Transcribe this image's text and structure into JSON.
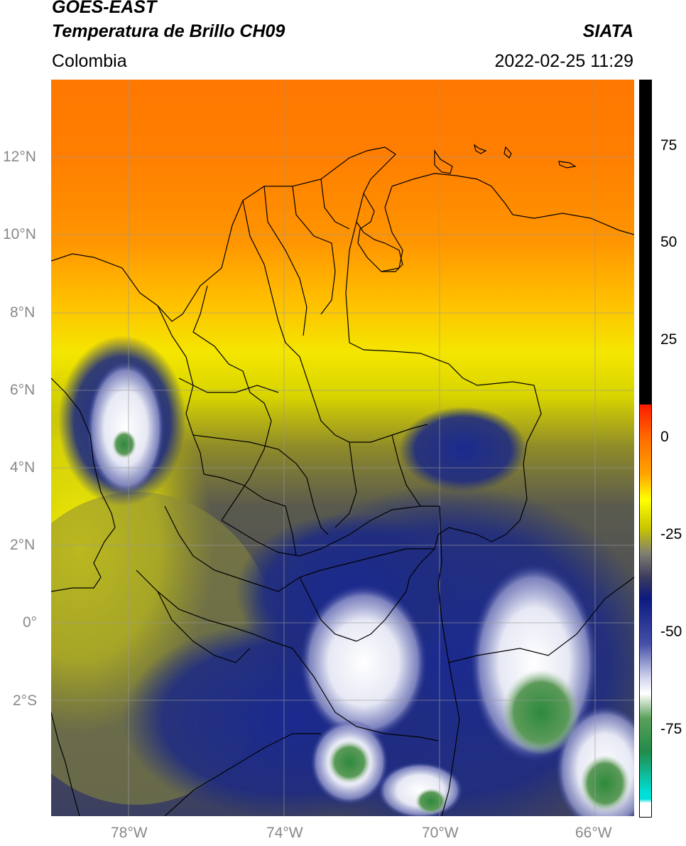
{
  "header": {
    "satellite": "GOES-EAST",
    "product": "Temperatura de Brillo CH09",
    "source": "SIATA",
    "region": "Colombia",
    "datetime": "2022-02-25 11:29"
  },
  "map": {
    "lon_range": [
      -80,
      -65
    ],
    "lat_range": [
      -5,
      14
    ],
    "lat_ticks": [
      "12°N",
      "10°N",
      "8°N",
      "6°N",
      "4°N",
      "2°N",
      "0°",
      "2°S"
    ],
    "lon_ticks": [
      "78°W",
      "74°W",
      "70°W",
      "66°W"
    ]
  },
  "colorbar": {
    "range": [
      -95,
      90
    ],
    "ticks": [
      "75",
      "50",
      "25",
      "0",
      "-25",
      "-50",
      "-75"
    ],
    "colors": [
      "#ffffff",
      "#00d6d0",
      "#2e8b57",
      "#ffffff",
      "#1c2389",
      "#5a5a52",
      "#ffff00",
      "#ff8c00",
      "#ff1a00",
      "#000000"
    ]
  }
}
